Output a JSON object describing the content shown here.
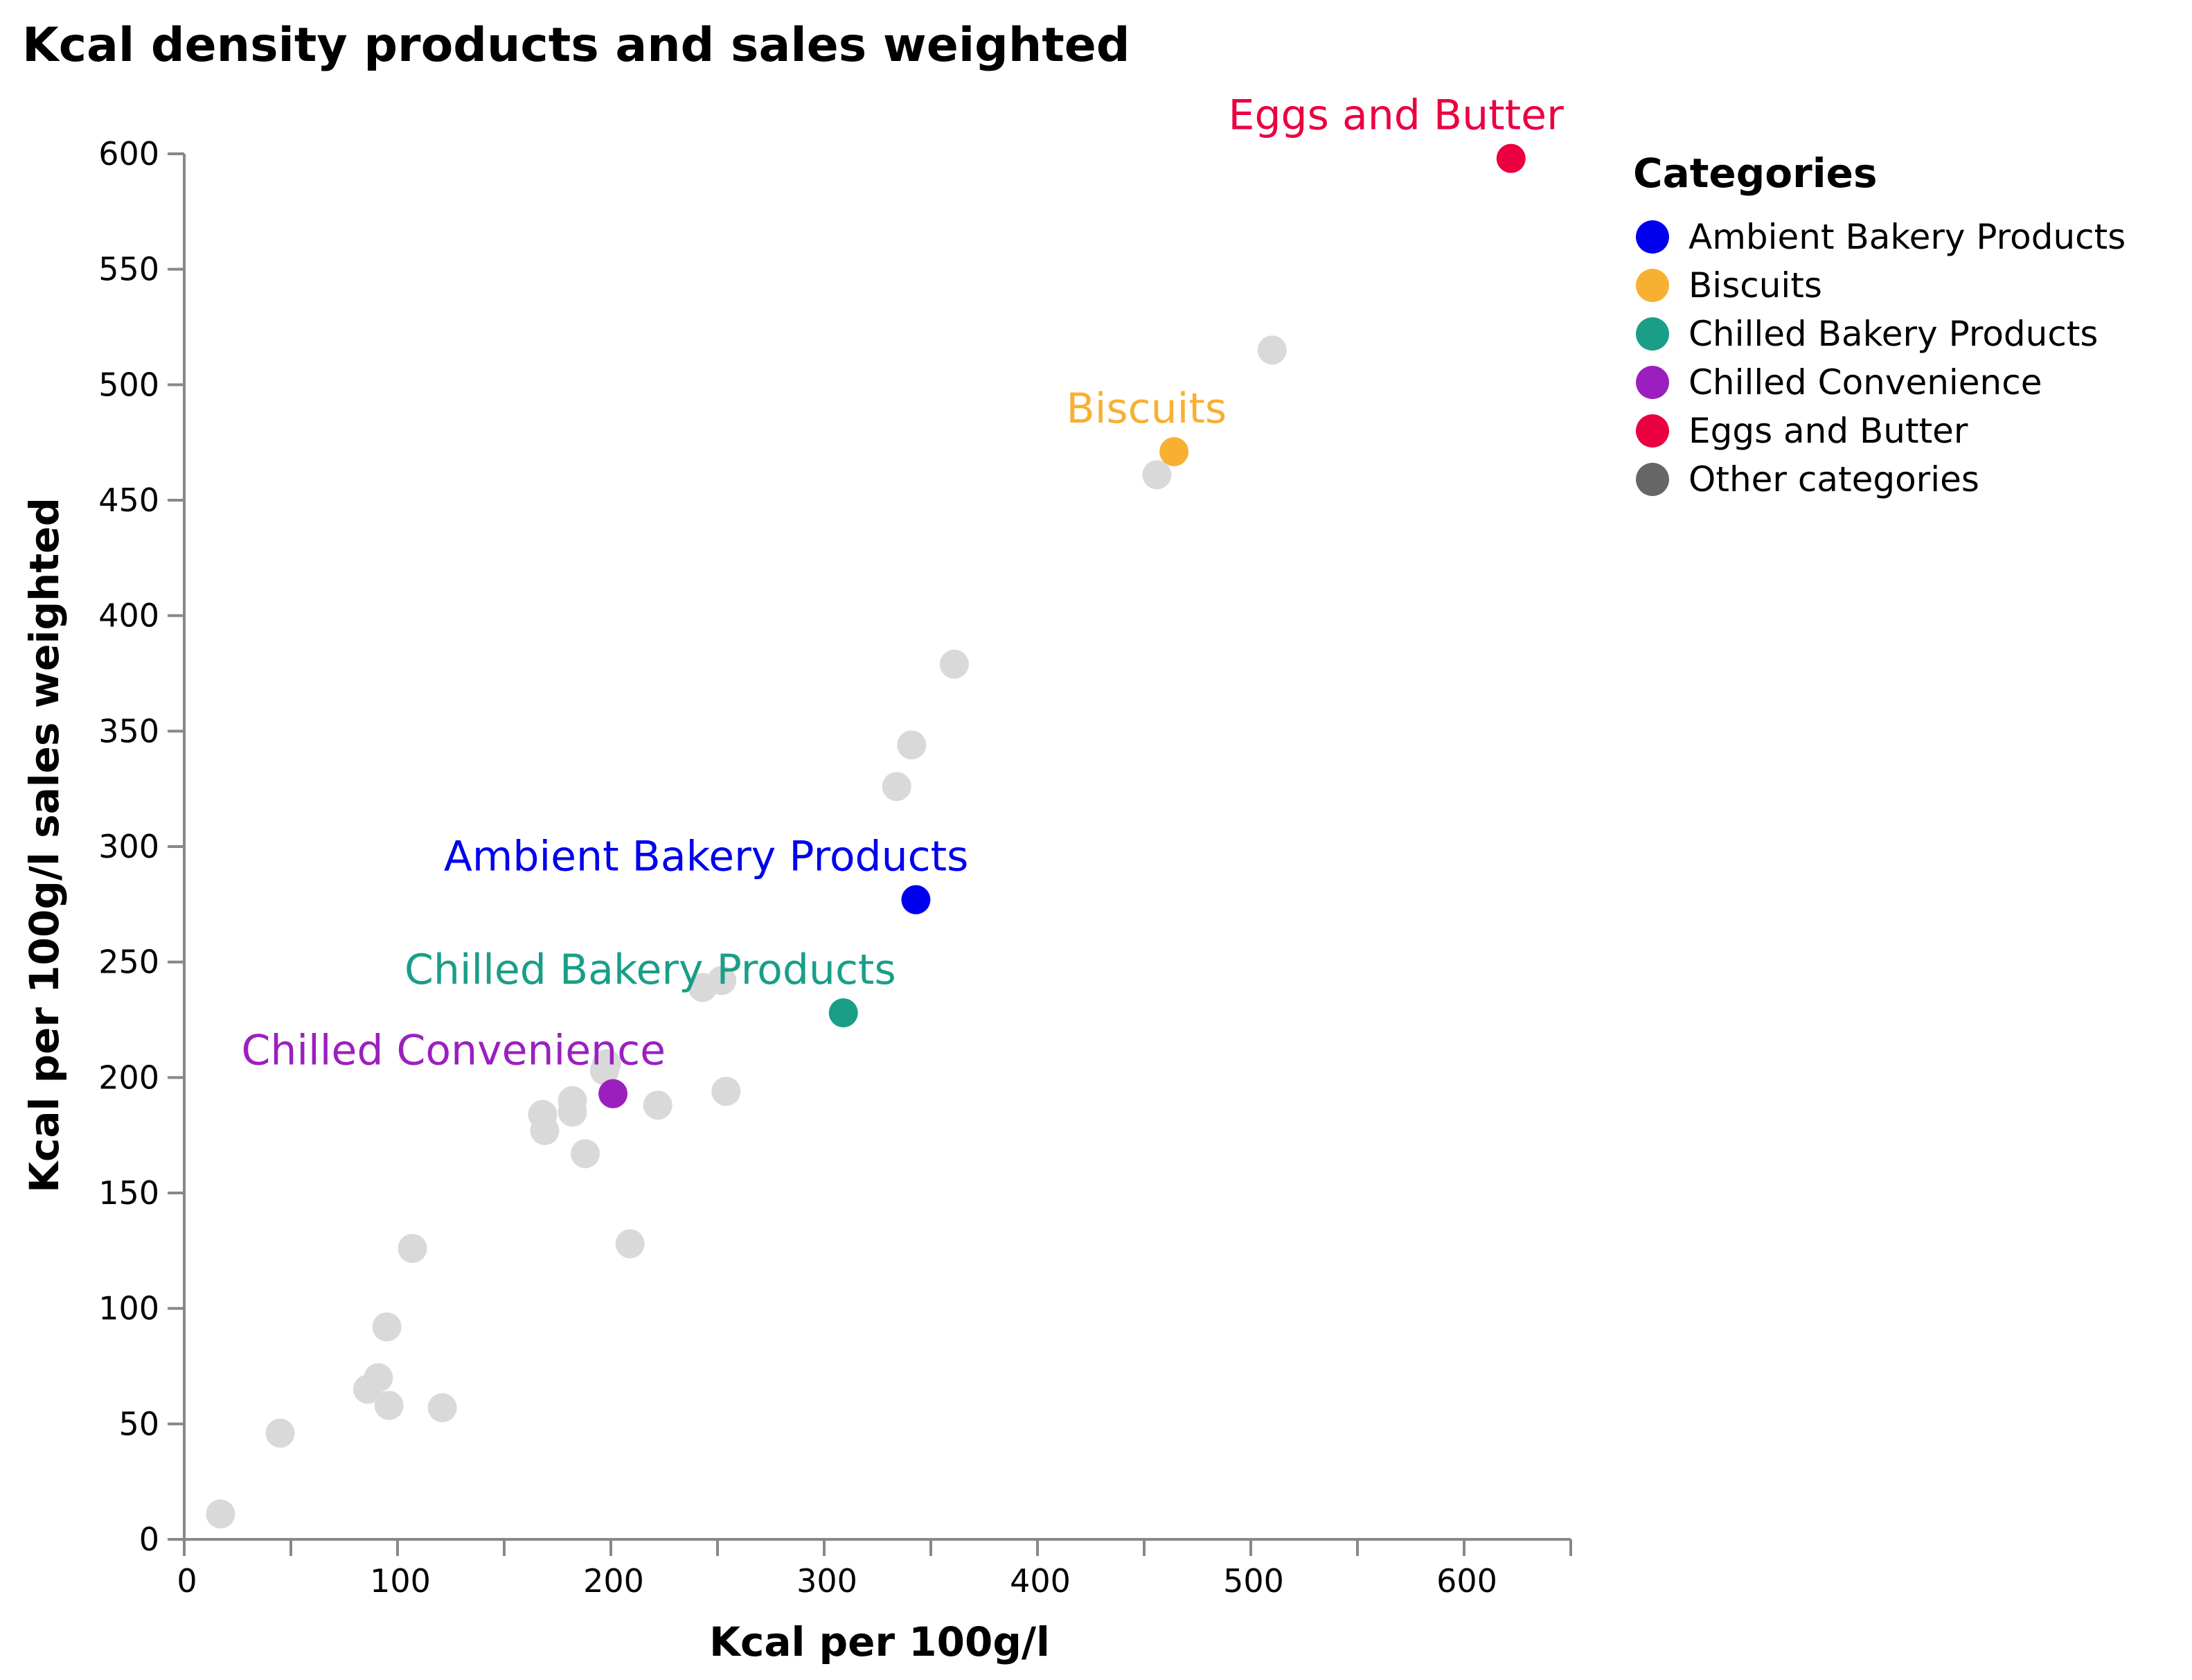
{
  "chart_data": {
    "type": "scatter",
    "title": "Kcal density products and sales weighted",
    "xlabel": "Kcal per 100g/l",
    "ylabel": "Kcal per 100g/l sales weighted",
    "xlim": [
      0,
      650
    ],
    "ylim": [
      0,
      600
    ],
    "x_ticks": [
      0,
      100,
      200,
      300,
      400,
      500,
      600
    ],
    "y_ticks": [
      0,
      50,
      100,
      150,
      200,
      250,
      300,
      350,
      400,
      450,
      500,
      550,
      600
    ],
    "grid": false,
    "legend": {
      "title": "Categories",
      "placement": "right",
      "entries": [
        {
          "label": "Ambient Bakery Products",
          "color": "#0000ee"
        },
        {
          "label": "Biscuits",
          "color": "#f8b033"
        },
        {
          "label": "Chilled Bakery Products",
          "color": "#1a9e87"
        },
        {
          "label": "Chilled Convenience",
          "color": "#9b1fbf"
        },
        {
          "label": "Eggs and Butter",
          "color": "#eb0040"
        },
        {
          "label": "Other categories",
          "color": "#666666"
        }
      ]
    },
    "series": [
      {
        "name": "Ambient Bakery Products",
        "color": "#0000ee",
        "label": "Ambient Bakery Products",
        "points": [
          {
            "x": 343,
            "y": 277
          }
        ]
      },
      {
        "name": "Biscuits",
        "color": "#f8b033",
        "label": "Biscuits",
        "points": [
          {
            "x": 464,
            "y": 471
          }
        ]
      },
      {
        "name": "Chilled Bakery Products",
        "color": "#1a9e87",
        "label": "Chilled Bakery Products",
        "points": [
          {
            "x": 309,
            "y": 228
          }
        ]
      },
      {
        "name": "Chilled Convenience",
        "color": "#9b1fbf",
        "label": "Chilled Convenience",
        "points": [
          {
            "x": 201,
            "y": 193
          }
        ]
      },
      {
        "name": "Eggs and Butter",
        "color": "#eb0040",
        "label": "Eggs and Butter",
        "points": [
          {
            "x": 622,
            "y": 598
          }
        ]
      },
      {
        "name": "Other categories",
        "color": "#d9d9d9",
        "points": [
          {
            "x": 17,
            "y": 11
          },
          {
            "x": 45,
            "y": 46
          },
          {
            "x": 86,
            "y": 65
          },
          {
            "x": 91,
            "y": 70
          },
          {
            "x": 96,
            "y": 58
          },
          {
            "x": 95,
            "y": 92
          },
          {
            "x": 107,
            "y": 126
          },
          {
            "x": 121,
            "y": 57
          },
          {
            "x": 168,
            "y": 184
          },
          {
            "x": 169,
            "y": 177
          },
          {
            "x": 182,
            "y": 190
          },
          {
            "x": 182,
            "y": 185
          },
          {
            "x": 188,
            "y": 167
          },
          {
            "x": 197,
            "y": 203
          },
          {
            "x": 198,
            "y": 206
          },
          {
            "x": 209,
            "y": 128
          },
          {
            "x": 222,
            "y": 188
          },
          {
            "x": 243,
            "y": 239
          },
          {
            "x": 252,
            "y": 242
          },
          {
            "x": 254,
            "y": 194
          },
          {
            "x": 334,
            "y": 326
          },
          {
            "x": 341,
            "y": 344
          },
          {
            "x": 361,
            "y": 379
          },
          {
            "x": 456,
            "y": 461
          },
          {
            "x": 510,
            "y": 515
          }
        ]
      }
    ]
  }
}
